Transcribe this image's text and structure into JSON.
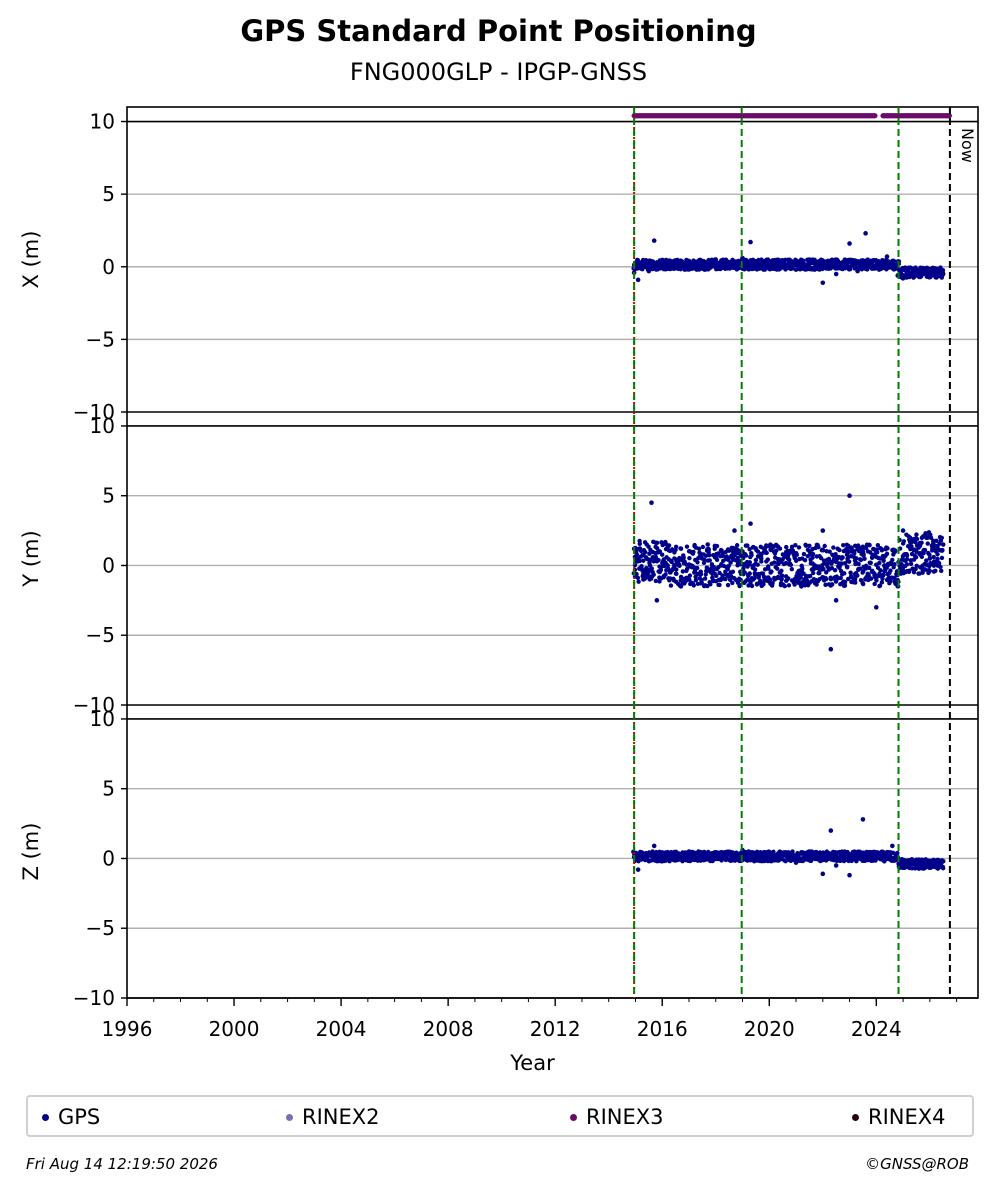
{
  "header": {
    "title": "GPS Standard Point Positioning",
    "subtitle": "FNG000GLP - IPGP-GNSS"
  },
  "chart_data": {
    "type": "scatter",
    "title": "GPS Standard Point Positioning",
    "subtitle": "FNG000GLP - IPGP-GNSS",
    "xlabel": "Year",
    "xlim": [
      1996,
      2027.8
    ],
    "x_ticks": [
      1996,
      2000,
      2004,
      2008,
      2012,
      2016,
      2020,
      2024
    ],
    "x_tick_labels": [
      "1996",
      "2000",
      "2004",
      "2008",
      "2012",
      "2016",
      "2020",
      "2024"
    ],
    "grid": true,
    "panels": [
      {
        "ylabel": "X (m)",
        "ylim": [
          -10,
          10
        ],
        "y_ticks": [
          10,
          5,
          0,
          -5,
          -10
        ],
        "y_tick_labels": [
          "10",
          "5",
          "0",
          "−5",
          "−10"
        ],
        "series": [
          {
            "name": "GPS",
            "x": [
              2014.95,
              2015.1,
              2015.3,
              2015.5,
              2015.7,
              2016.0,
              2016.5,
              2017.0,
              2017.5,
              2018.0,
              2018.5,
              2019.0,
              2019.3,
              2019.6,
              2020.0,
              2020.5,
              2021.0,
              2021.5,
              2022.0,
              2022.2,
              2022.5,
              2022.8,
              2023.0,
              2023.3,
              2023.6,
              2024.0,
              2024.4,
              2024.8,
              2025.0,
              2025.5,
              2026.0,
              2026.5
            ],
            "y": [
              -0.4,
              -0.9,
              0.2,
              -0.3,
              1.8,
              0.3,
              -0.1,
              0.4,
              0.2,
              0.5,
              0.3,
              0.6,
              1.7,
              0.2,
              0.3,
              0.1,
              -0.2,
              0.5,
              -1.1,
              0.4,
              -0.5,
              0.2,
              1.6,
              -0.3,
              2.3,
              0.1,
              0.7,
              -0.6,
              -0.8,
              -0.4,
              -0.3,
              -0.5
            ]
          }
        ]
      },
      {
        "ylabel": "Y (m)",
        "ylim": [
          -10,
          10
        ],
        "y_ticks": [
          10,
          5,
          0,
          -5,
          -10
        ],
        "y_tick_labels": [
          "10",
          "5",
          "0",
          "−5",
          "−10"
        ],
        "series": [
          {
            "name": "GPS",
            "x": [
              2014.95,
              2015.1,
              2015.3,
              2015.6,
              2015.8,
              2016.2,
              2016.7,
              2017.2,
              2017.7,
              2018.2,
              2018.7,
              2019.0,
              2019.3,
              2019.7,
              2020.2,
              2020.7,
              2021.2,
              2021.7,
              2022.0,
              2022.3,
              2022.5,
              2022.7,
              2023.0,
              2023.2,
              2023.5,
              2024.0,
              2024.3,
              2024.7,
              2025.0,
              2025.5,
              2026.0,
              2026.5
            ],
            "y": [
              1.2,
              0.5,
              -1.0,
              4.5,
              -2.5,
              0.0,
              -1.5,
              -0.5,
              1.5,
              0.0,
              2.5,
              1.0,
              3.0,
              0.5,
              -1.0,
              0.5,
              -1.5,
              0.0,
              2.5,
              -6.0,
              -2.5,
              0.5,
              5.0,
              -1.0,
              1.0,
              -3.0,
              0.0,
              1.0,
              2.5,
              1.0,
              0.5,
              1.5
            ]
          }
        ]
      },
      {
        "ylabel": "Z (m)",
        "ylim": [
          -10,
          10
        ],
        "y_ticks": [
          10,
          5,
          0,
          -5,
          -10
        ],
        "y_tick_labels": [
          "10",
          "5",
          "0",
          "−5",
          "−10"
        ],
        "series": [
          {
            "name": "GPS",
            "x": [
              2014.95,
              2015.1,
              2015.4,
              2015.7,
              2016.0,
              2016.5,
              2017.0,
              2017.5,
              2018.0,
              2018.5,
              2019.0,
              2019.5,
              2020.0,
              2020.5,
              2021.0,
              2021.5,
              2022.0,
              2022.3,
              2022.5,
              2022.7,
              2023.0,
              2023.3,
              2023.5,
              2024.0,
              2024.3,
              2024.6,
              2025.0,
              2025.5,
              2026.0,
              2026.5
            ],
            "y": [
              0.1,
              -0.8,
              0.2,
              0.9,
              -0.2,
              0.3,
              0.5,
              0.1,
              0.3,
              -0.1,
              0.6,
              0.2,
              0.4,
              0.3,
              -0.3,
              0.5,
              -1.1,
              2.0,
              -0.5,
              0.2,
              -1.2,
              0.4,
              2.8,
              0.3,
              -0.2,
              0.9,
              -0.4,
              -0.1,
              -0.3,
              -0.2
            ]
          }
        ]
      }
    ],
    "rinex3_coverage": {
      "y": 10.4,
      "segments": [
        [
          2014.95,
          2023.95
        ],
        [
          2024.25,
          2026.75
        ]
      ]
    },
    "vertical_lines": [
      {
        "x": 2014.95,
        "color": "#cc0000",
        "style": "dotted"
      },
      {
        "x": 2014.95,
        "color": "#008000",
        "style": "dashed"
      },
      {
        "x": 2018.97,
        "color": "#008000",
        "style": "dashed"
      },
      {
        "x": 2024.83,
        "color": "#008000",
        "style": "dashed"
      },
      {
        "x": 2026.75,
        "color": "#000000",
        "style": "dashed",
        "label": "Now"
      }
    ],
    "legend": {
      "placement": "bottom",
      "entries": [
        {
          "label": "GPS",
          "color": "#00008b"
        },
        {
          "label": "RINEX2",
          "color": "#7b6fb6"
        },
        {
          "label": "RINEX3",
          "color": "#6b0a6b"
        },
        {
          "label": "RINEX4",
          "color": "#2a0010"
        }
      ]
    }
  },
  "footer": {
    "timestamp": "Fri Aug 14 12:19:50 2026",
    "credit": "©GNSS@ROB"
  }
}
